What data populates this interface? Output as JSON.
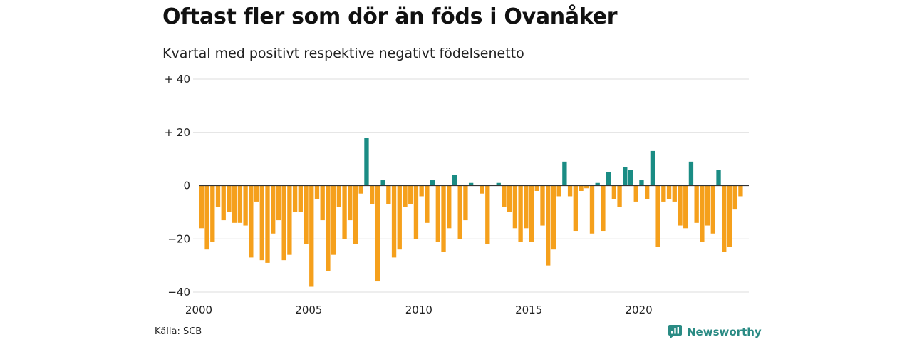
{
  "title": "Oftast fler som dör än föds i Ovanåker",
  "subtitle": "Kvartal med positivt respektive negativt födelsenetto",
  "source": "Källa: SCB",
  "brand": "Newsworthy",
  "colors": {
    "positive": "#1a8c84",
    "negative": "#f5a01c",
    "grid": "#dddddd",
    "zero_line": "#333333"
  },
  "chart_data": {
    "type": "bar",
    "title": "Oftast fler som dör än föds i Ovanåker",
    "subtitle": "Kvartal med positivt respektive negativt födelsenetto",
    "x_start_year": 2000,
    "quarters_per_year": 4,
    "xlim": [
      2000,
      2025
    ],
    "ylim": [
      -40,
      40
    ],
    "y_ticks": [
      {
        "value": 40,
        "label": "+ 40"
      },
      {
        "value": 20,
        "label": "+ 20"
      },
      {
        "value": 0,
        "label": "0"
      },
      {
        "value": -20,
        "label": "−20"
      },
      {
        "value": -40,
        "label": "−40"
      }
    ],
    "x_ticks": [
      {
        "value": 2000,
        "label": "2000"
      },
      {
        "value": 2005,
        "label": "2005"
      },
      {
        "value": 2010,
        "label": "2010"
      },
      {
        "value": 2015,
        "label": "2015"
      },
      {
        "value": 2020,
        "label": "2020"
      }
    ],
    "grid": true,
    "values": [
      -16,
      -24,
      -21,
      -8,
      -13,
      -10,
      -14,
      -14,
      -15,
      -27,
      -6,
      -28,
      -29,
      -18,
      -13,
      -28,
      -26,
      -10,
      -10,
      -22,
      -38,
      -5,
      -13,
      -32,
      -26,
      -8,
      -20,
      -13,
      -22,
      -3,
      18,
      -7,
      -36,
      2,
      -7,
      -27,
      -24,
      -8,
      -7,
      -20,
      -4,
      -14,
      2,
      -21,
      -25,
      -16,
      4,
      -20,
      -13,
      1,
      0,
      -3,
      -22,
      0,
      1,
      -8,
      -10,
      -16,
      -21,
      -16,
      -21,
      -2,
      -15,
      -30,
      -24,
      -4,
      9,
      -4,
      -17,
      -2,
      -1,
      -18,
      1,
      -17,
      5,
      -5,
      -8,
      7,
      6,
      -6,
      2,
      -5,
      13,
      -23,
      -6,
      -5,
      -6,
      -15,
      -16,
      9,
      -14,
      -21,
      -15,
      -18,
      6,
      -25,
      -23,
      -9,
      -4
    ]
  }
}
